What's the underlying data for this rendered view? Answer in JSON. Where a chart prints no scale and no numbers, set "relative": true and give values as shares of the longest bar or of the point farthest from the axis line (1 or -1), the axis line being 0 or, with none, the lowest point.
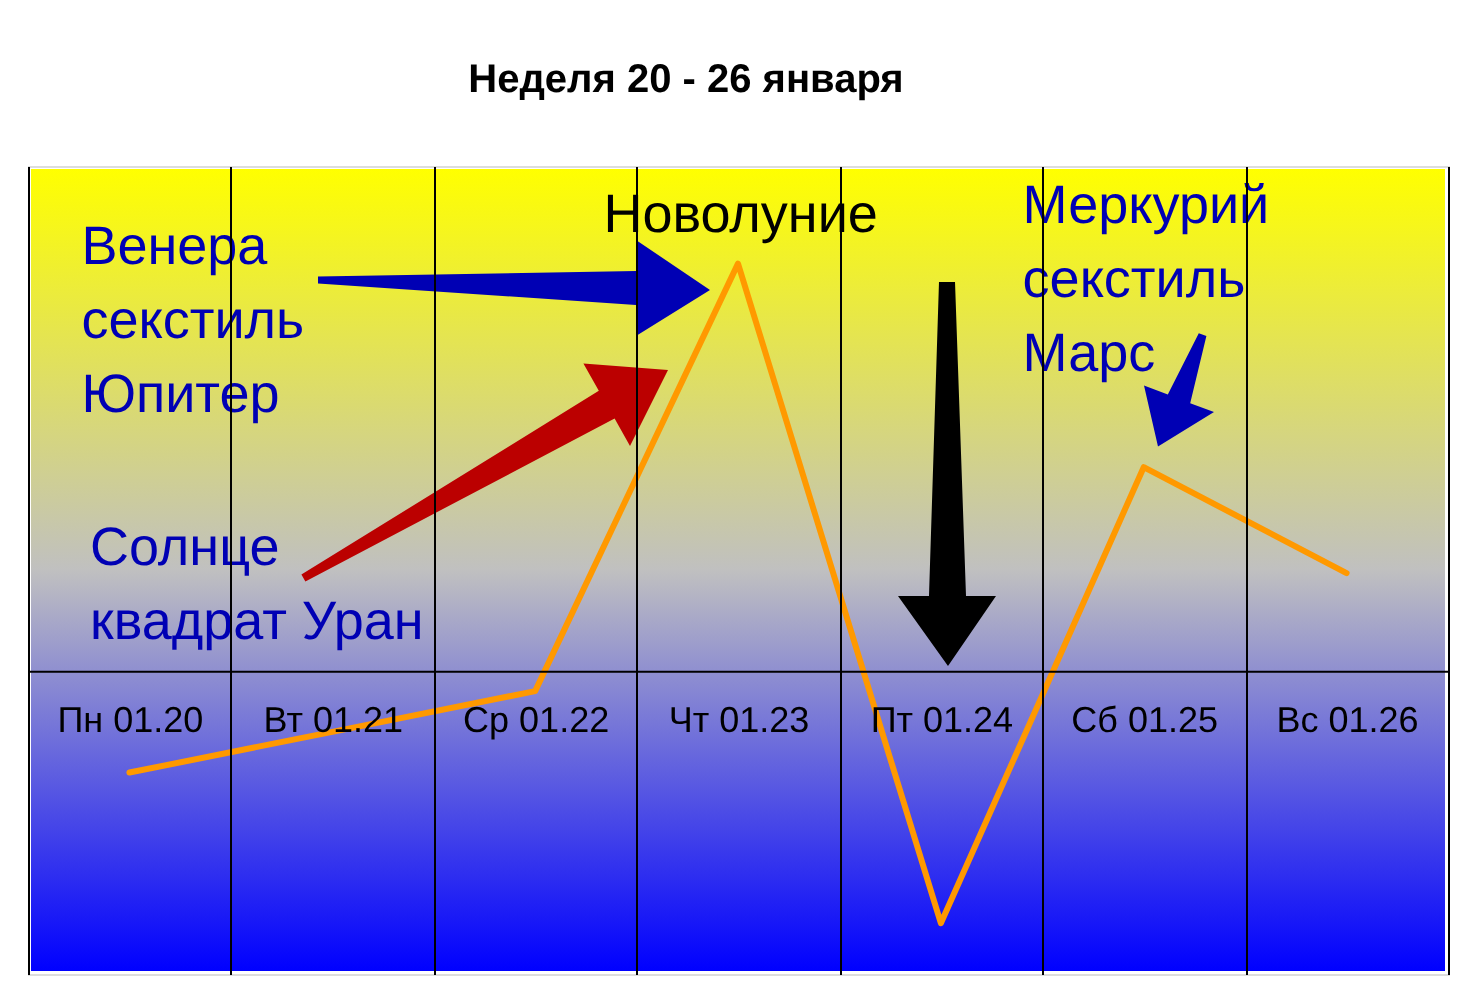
{
  "chart_data": {
    "type": "line",
    "title": "Неделя 20 - 26 января",
    "categories": [
      "Пн 01.20",
      "Вт 01.21",
      "Ср 01.22",
      "Чт 01.23",
      "Пт 01.24",
      "Сб 01.25",
      "Вс 01.26"
    ],
    "relative": true,
    "series": [
      {
        "color": "#ff9900",
        "values": [
          -0.25,
          -0.15,
          -0.05,
          1,
          -0.62,
          0.5,
          0.24
        ]
      }
    ],
    "grid": "x",
    "annotations": [
      "Венера\nсекстиль\nЮпитер",
      "Солнце\nквадрат Уран",
      "Новолуние",
      "Меркурий\nсекстиль\nМарс"
    ]
  }
}
